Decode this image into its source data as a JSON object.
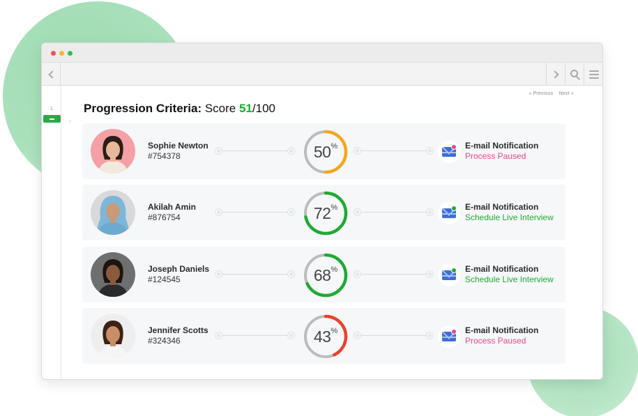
{
  "colors": {
    "green": "#1faa32",
    "orange": "#f4a71c",
    "red": "#e9412b",
    "pink": "#e6478c",
    "track": "#bcbcbc"
  },
  "pager": {
    "previous": "« Previous",
    "next": "Next »"
  },
  "sidebar": {
    "page_number": "1"
  },
  "header": {
    "label": "Progression Criteria:",
    "score_label": "Score",
    "score_value": "51",
    "score_total": "/100"
  },
  "candidates": [
    {
      "name": "Sophie Newton",
      "id": "#754378",
      "score": 50,
      "score_color": "#f4a71c",
      "notification_title": "E-mail Notification",
      "status": "Process Paused",
      "status_color": "#e6478c",
      "badge_color": "#e6478c"
    },
    {
      "name": "Akilah Amin",
      "id": "#876754",
      "score": 72,
      "score_color": "#1faa32",
      "notification_title": "E-mail Notification",
      "status": "Schedule Live Interview",
      "status_color": "#1faa32",
      "badge_color": "#1faa32"
    },
    {
      "name": "Joseph Daniels",
      "id": "#124545",
      "score": 68,
      "score_color": "#1faa32",
      "notification_title": "E-mail Notification",
      "status": "Schedule Live Interview",
      "status_color": "#1faa32",
      "badge_color": "#1faa32"
    },
    {
      "name": "Jennifer Scotts",
      "id": "#324346",
      "score": 43,
      "score_color": "#e9412b",
      "notification_title": "E-mail Notification",
      "status": "Process Paused",
      "status_color": "#e6478c",
      "badge_color": "#e6478c"
    }
  ]
}
